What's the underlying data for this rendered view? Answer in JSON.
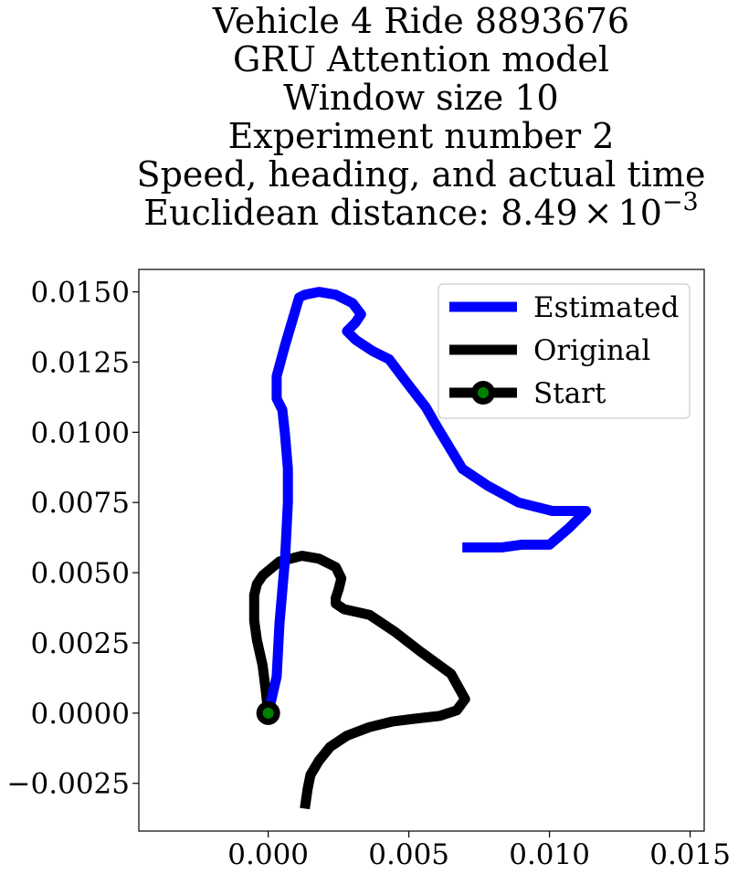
{
  "chart_data": {
    "type": "line",
    "title_lines": [
      "Vehicle 4 Ride 8893676",
      "GRU Attention model",
      "Window size 10",
      "Experiment number 2",
      "Speed, heading, and actual time"
    ],
    "title_metric": {
      "label": "Euclidean distance: ",
      "mantissa": "8.49",
      "times": "×",
      "base": "10",
      "exponent": "−3"
    },
    "xlabel": "",
    "ylabel": "",
    "xlim": [
      -0.0046,
      0.0155
    ],
    "ylim": [
      -0.0042,
      0.0158
    ],
    "x_ticks": [
      0.0,
      0.005,
      0.01,
      0.015
    ],
    "x_tick_labels": [
      "0.000",
      "0.005",
      "0.010",
      "0.015"
    ],
    "y_ticks": [
      -0.0025,
      0.0,
      0.0025,
      0.005,
      0.0075,
      0.01,
      0.0125,
      0.015
    ],
    "y_tick_labels": [
      "−0.0025",
      "0.0000",
      "0.0025",
      "0.0050",
      "0.0075",
      "0.0100",
      "0.0125",
      "0.0150"
    ],
    "grid": false,
    "legend_position": "top-right",
    "series": [
      {
        "name": "Estimated",
        "color": "#0000ff",
        "x": [
          0.0,
          0.0003,
          0.0004,
          0.0006,
          0.0007,
          0.0007,
          0.0006,
          0.0005,
          0.0003,
          0.0003,
          0.0006,
          0.0011,
          0.0013,
          0.0018,
          0.0024,
          0.003,
          0.0033,
          0.0031,
          0.0028,
          0.0031,
          0.0037,
          0.0043,
          0.0049,
          0.0056,
          0.006,
          0.0063,
          0.0069,
          0.0078,
          0.0089,
          0.0101,
          0.0113,
          0.0107,
          0.01,
          0.0097,
          0.009,
          0.0083,
          0.0076,
          0.0069
        ],
        "y": [
          0.0,
          0.0013,
          0.0032,
          0.0055,
          0.0075,
          0.0087,
          0.0099,
          0.0108,
          0.0112,
          0.012,
          0.0131,
          0.0148,
          0.0149,
          0.015,
          0.0149,
          0.0146,
          0.0142,
          0.0139,
          0.0136,
          0.0133,
          0.0129,
          0.0126,
          0.0118,
          0.0109,
          0.0102,
          0.0097,
          0.0087,
          0.0081,
          0.0075,
          0.0072,
          0.0072,
          0.0066,
          0.006,
          0.006,
          0.006,
          0.0059,
          0.0059,
          0.0059
        ]
      },
      {
        "name": "Original",
        "color": "#000000",
        "x": [
          0.0,
          -0.0001,
          -0.0002,
          -0.0004,
          -0.0005,
          -0.0005,
          -0.0004,
          -0.0002,
          0.0004,
          0.0012,
          0.0018,
          0.0024,
          0.0026,
          0.0025,
          0.0024,
          0.0024,
          0.0027,
          0.0036,
          0.0045,
          0.0054,
          0.0065,
          0.007,
          0.0067,
          0.0061,
          0.0052,
          0.0044,
          0.0036,
          0.0028,
          0.0022,
          0.0018,
          0.0015,
          0.0014,
          0.0013
        ],
        "y": [
          0.0,
          0.0009,
          0.0017,
          0.0026,
          0.0033,
          0.0042,
          0.0046,
          0.0049,
          0.0054,
          0.0056,
          0.0055,
          0.0052,
          0.0048,
          0.0044,
          0.0041,
          0.0039,
          0.0037,
          0.0035,
          0.0029,
          0.0022,
          0.0014,
          0.0005,
          0.0001,
          -0.0001,
          -0.0002,
          -0.0003,
          -0.0005,
          -0.0008,
          -0.0012,
          -0.0017,
          -0.0022,
          -0.0027,
          -0.0034
        ]
      }
    ],
    "start_marker": {
      "name": "Start",
      "x": 0.0,
      "y": 0.0,
      "line_color": "#000000",
      "fill_color": "#008000"
    }
  }
}
